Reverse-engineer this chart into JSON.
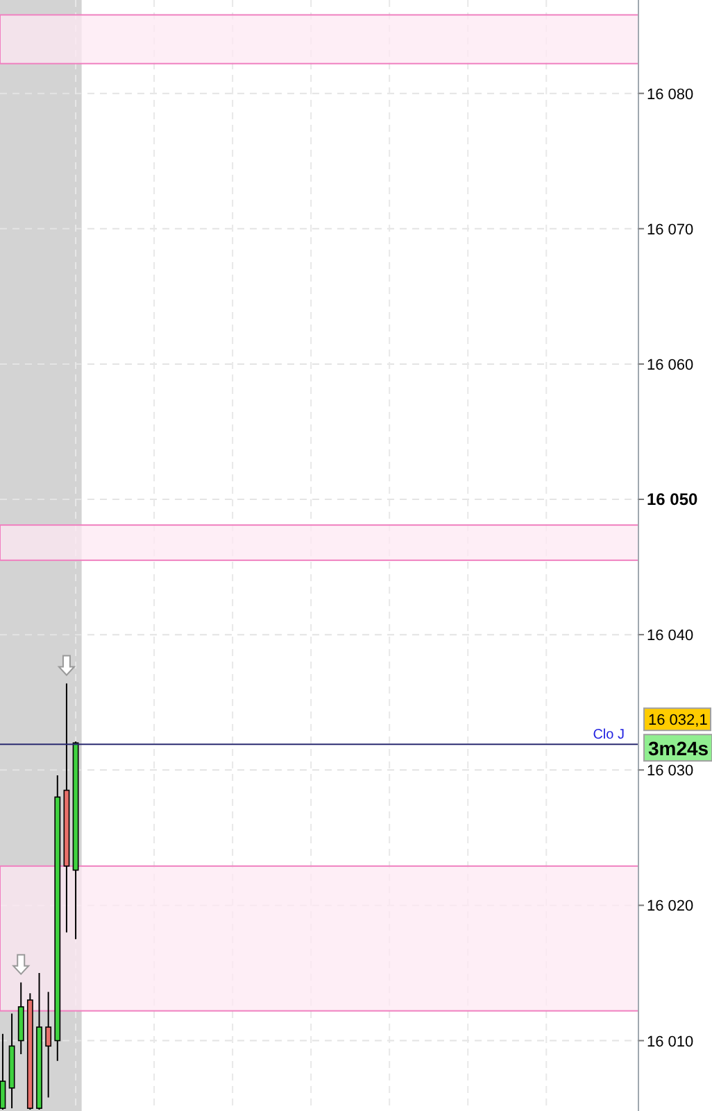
{
  "chart_data": {
    "type": "candlestick",
    "categories": [
      null,
      null,
      null,
      null,
      null,
      null,
      null,
      null,
      null,
      null,
      null,
      null,
      null,
      null,
      null,
      null,
      null,
      null,
      null,
      null,
      null,
      null,
      null,
      null,
      null,
      null,
      null,
      null,
      null,
      null,
      null,
      null,
      null,
      null,
      null,
      null,
      null,
      null,
      null,
      null,
      null,
      null,
      null,
      null,
      null,
      null,
      null,
      null,
      null,
      null,
      null,
      null,
      null,
      null,
      null,
      null,
      null,
      null,
      null,
      null,
      null,
      null,
      null,
      null,
      null,
      null,
      null,
      null,
      null,
      null
    ],
    "ohlc": [
      [
        16005.0,
        16010.5,
        16004.9,
        16007.0
      ],
      [
        16006.5,
        16012.0,
        16005.0,
        16009.6
      ],
      [
        16010.0,
        16014.3,
        16009.0,
        16012.5
      ],
      [
        16013.0,
        16013.5,
        16004.9,
        16005.0
      ],
      [
        16005.0,
        16015.0,
        16004.9,
        16011.0
      ],
      [
        16011.0,
        16013.6,
        16005.8,
        16009.6
      ],
      [
        16010.0,
        16029.6,
        16008.5,
        16028.0
      ],
      [
        16028.5,
        16036.4,
        16018.0,
        16022.9
      ],
      [
        16022.6,
        16032.1,
        16017.5,
        16032.0
      ],
      null,
      null,
      null,
      null,
      null,
      null,
      null,
      null,
      null,
      null,
      null,
      null,
      null,
      null,
      null,
      null,
      null,
      null,
      null,
      null,
      null,
      null,
      null,
      null,
      null,
      null,
      null,
      null,
      null,
      null,
      null,
      null,
      null,
      null,
      null,
      null,
      null,
      null,
      null,
      null,
      null,
      null,
      null,
      null,
      null,
      null,
      null,
      null,
      null,
      null,
      null,
      null,
      null,
      null,
      null,
      null,
      null,
      null,
      null,
      null,
      null
    ],
    "colors": [
      "#3fd13f",
      "#3fd13f",
      "#3fd13f",
      "#e8706a",
      "#3fd13f",
      "#e8706a",
      "#3fd13f",
      "#e8706a",
      "#3fd13f",
      null,
      null,
      null,
      null,
      null,
      null,
      null,
      null,
      null,
      null,
      null,
      null,
      null,
      null,
      null,
      null,
      null,
      null,
      null,
      null,
      null,
      null,
      null,
      null,
      null,
      null,
      null,
      null,
      null,
      null,
      null,
      null,
      null,
      null,
      null,
      null,
      null,
      null,
      null,
      null,
      null,
      null,
      null,
      null,
      null,
      null,
      null,
      null,
      null,
      null,
      null,
      null,
      null,
      null,
      null,
      null,
      null,
      null,
      null,
      null,
      null
    ],
    "ylim": [
      16004.8,
      16086.9
    ],
    "yticks": [
      {
        "value": 16010,
        "label": "16 010"
      },
      {
        "value": 16020,
        "label": "16 020"
      },
      {
        "value": 16030,
        "label": "16 030"
      },
      {
        "value": 16040,
        "label": "16 040"
      },
      {
        "value": 16050,
        "label": "16 050"
      },
      {
        "value": 16060,
        "label": "16 060"
      },
      {
        "value": 16070,
        "label": "16 070"
      },
      {
        "value": 16080,
        "label": "16 080"
      }
    ],
    "grid": true,
    "tick_labels": "y",
    "bands": [
      {
        "axis": "y",
        "from": 16082.2,
        "to": 16085.8,
        "color": "#fde8f3"
      },
      {
        "axis": "y",
        "from": 16045.5,
        "to": 16048.1,
        "color": "#fde8f3"
      },
      {
        "axis": "y",
        "from": 16012.2,
        "to": 16022.9,
        "color": "#fde8f3"
      }
    ],
    "ref_lines": [
      {
        "axis": "y",
        "value": 16031.9,
        "label": "Clo J",
        "color": "#2a2a70"
      }
    ],
    "annotations": [
      "16 032,1",
      "3m24s"
    ]
  }
}
